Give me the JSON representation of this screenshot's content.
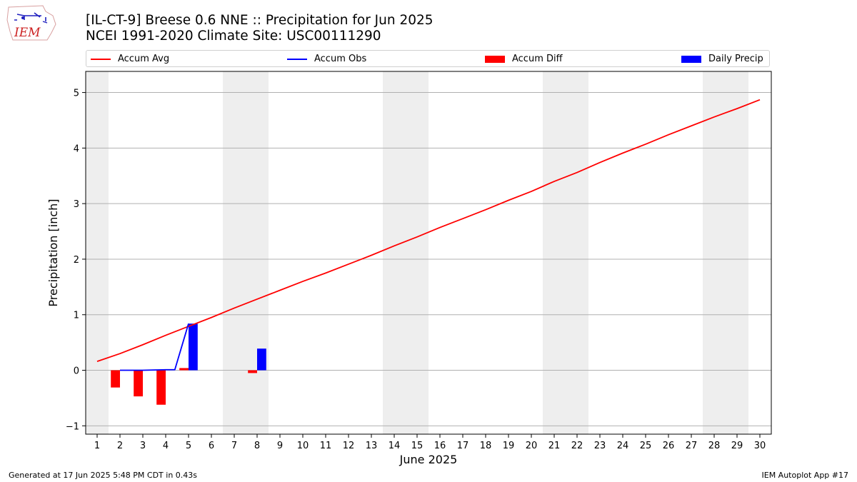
{
  "header": {
    "title_line1": "[IL-CT-9] Breese 0.6 NNE :: Precipitation for Jun 2025",
    "title_line2": "NCEI 1991-2020 Climate Site: USC00111290",
    "logo_text": "IEM"
  },
  "footer": {
    "left": "Generated at 17 Jun 2025 5:48 PM CDT in 0.43s",
    "right": "IEM Autoplot App #17"
  },
  "colors": {
    "avg": "#ff0000",
    "obs": "#0000ff",
    "diff": "#ff0000",
    "daily": "#0000ff",
    "shade": "#eeeeee",
    "grid": "#b0b0b0"
  },
  "chart_data": {
    "type": "bar",
    "xlabel": "June 2025",
    "ylabel": "Precipitation [inch]",
    "xlim": [
      0.5,
      30.5
    ],
    "ylim": [
      -1.15,
      5.38
    ],
    "yticks": [
      -1,
      0,
      1,
      2,
      3,
      4,
      5
    ],
    "xticks": [
      "1",
      "2",
      "3",
      "4",
      "5",
      "6",
      "7",
      "8",
      "9",
      "10",
      "11",
      "12",
      "13",
      "14",
      "15",
      "16",
      "17",
      "18",
      "19",
      "20",
      "21",
      "22",
      "23",
      "24",
      "25",
      "26",
      "27",
      "28",
      "29",
      "30"
    ],
    "grid": "horizontal",
    "legend_position": "top",
    "weekend_shading": [
      [
        0.5,
        1.5
      ],
      [
        6.5,
        8.5
      ],
      [
        13.5,
        15.5
      ],
      [
        20.5,
        22.5
      ],
      [
        27.5,
        29.5
      ]
    ],
    "series": [
      {
        "name": "Accum Avg",
        "kind": "line",
        "x": [
          1,
          2,
          3,
          4,
          5,
          6,
          7,
          8,
          9,
          10,
          11,
          12,
          13,
          14,
          15,
          16,
          17,
          18,
          19,
          20,
          21,
          22,
          23,
          24,
          25,
          26,
          27,
          28,
          29,
          30
        ],
        "values": [
          0.16,
          0.3,
          0.46,
          0.63,
          0.79,
          0.95,
          1.12,
          1.28,
          1.44,
          1.6,
          1.75,
          1.91,
          2.07,
          2.24,
          2.4,
          2.57,
          2.73,
          2.89,
          3.06,
          3.22,
          3.4,
          3.56,
          3.74,
          3.91,
          4.07,
          4.24,
          4.4,
          4.56,
          4.71,
          4.87
        ]
      },
      {
        "name": "Accum Obs",
        "kind": "line",
        "x": [
          2,
          3,
          4,
          4.4,
          5
        ],
        "values": [
          0.0,
          0.0,
          0.01,
          0.01,
          0.84
        ]
      },
      {
        "name": "Accum Diff",
        "kind": "bar",
        "x": [
          2,
          3,
          4,
          5,
          8
        ],
        "values": [
          -0.31,
          -0.47,
          -0.62,
          0.04,
          -0.05
        ]
      },
      {
        "name": "Daily Precip",
        "kind": "bar",
        "x": [
          5,
          8
        ],
        "values": [
          0.84,
          0.39
        ]
      }
    ]
  }
}
